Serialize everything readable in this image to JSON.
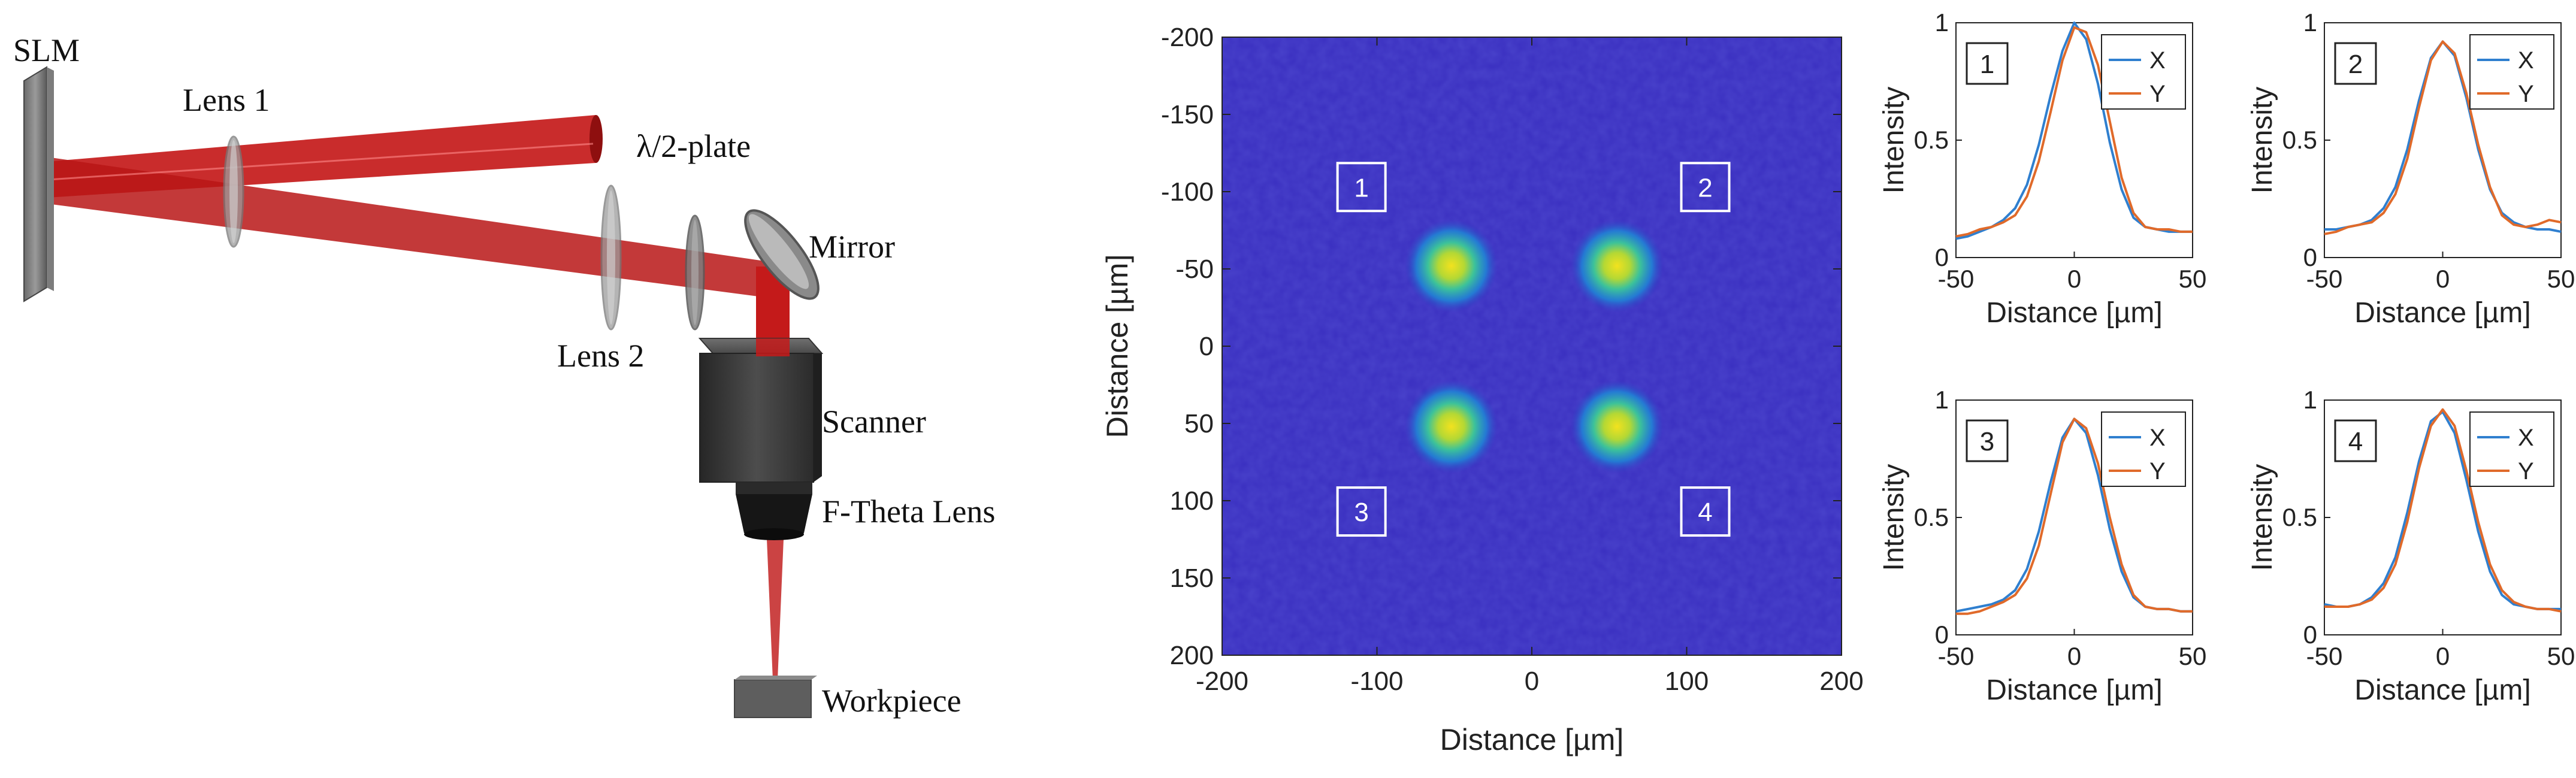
{
  "setup": {
    "labels": {
      "slm": "SLM",
      "lens1": "Lens 1",
      "halfwave": "λ/2-plate",
      "mirror": "Mirror",
      "lens2": "Lens 2",
      "scanner": "Scanner",
      "ftheta": "F-Theta Lens",
      "workpiece": "Workpiece"
    },
    "colors": {
      "beam": "#c41a1a",
      "device": "#3c3c3c",
      "optic": "#a9a9a9"
    }
  },
  "chart_data": [
    {
      "type": "heatmap",
      "xlabel": "Distance [µm]",
      "ylabel": "Distance [µm]",
      "xlim": [
        -200,
        200
      ],
      "ylim": [
        -200,
        200
      ],
      "y_inverted": true,
      "xticks": [
        "-200",
        "-100",
        "0",
        "100",
        "200"
      ],
      "yticks": [
        "-200",
        "-150",
        "-100",
        "-50",
        "0",
        "50",
        "100",
        "150",
        "200"
      ],
      "spots": [
        {
          "x": -52,
          "y": -52
        },
        {
          "x": 55,
          "y": -52
        },
        {
          "x": -52,
          "y": 52
        },
        {
          "x": 55,
          "y": 52
        }
      ],
      "region_boxes": [
        {
          "label": "1",
          "x": -110,
          "y": -103
        },
        {
          "label": "2",
          "x": 112,
          "y": -103
        },
        {
          "label": "3",
          "x": -110,
          "y": 107
        },
        {
          "label": "4",
          "x": 112,
          "y": 107
        }
      ],
      "colormap": [
        "#3a2fc0",
        "#1f8bd8",
        "#20c0a8",
        "#a8d840",
        "#f0e020"
      ]
    },
    {
      "type": "line",
      "panel": "1",
      "xlabel": "Distance [µm]",
      "ylabel": "Intensity",
      "xlim": [
        -50,
        50
      ],
      "ylim": [
        0,
        1
      ],
      "xticks": [
        "-50",
        "0",
        "50"
      ],
      "yticks": [
        "0",
        "0.5",
        "1"
      ],
      "x": [
        -50,
        -45,
        -40,
        -35,
        -30,
        -25,
        -20,
        -15,
        -10,
        -5,
        0,
        5,
        10,
        15,
        20,
        25,
        30,
        35,
        40,
        45,
        50
      ],
      "series": [
        {
          "name": "X",
          "color": "#2f7fcf",
          "values": [
            0.08,
            0.09,
            0.11,
            0.13,
            0.16,
            0.21,
            0.31,
            0.48,
            0.69,
            0.88,
            1.0,
            0.93,
            0.74,
            0.49,
            0.29,
            0.17,
            0.13,
            0.12,
            0.11,
            0.11,
            0.11
          ]
        },
        {
          "name": "Y",
          "color": "#e06a2a",
          "values": [
            0.09,
            0.1,
            0.12,
            0.13,
            0.15,
            0.18,
            0.26,
            0.41,
            0.62,
            0.84,
            0.98,
            0.96,
            0.82,
            0.58,
            0.34,
            0.19,
            0.13,
            0.12,
            0.12,
            0.11,
            0.11
          ]
        }
      ]
    },
    {
      "type": "line",
      "panel": "2",
      "xlabel": "Distance [µm]",
      "ylabel": "Intensity",
      "xlim": [
        -50,
        50
      ],
      "ylim": [
        0,
        1
      ],
      "xticks": [
        "-50",
        "0",
        "50"
      ],
      "yticks": [
        "0",
        "0.5",
        "1"
      ],
      "x": [
        -50,
        -45,
        -40,
        -35,
        -30,
        -25,
        -20,
        -15,
        -10,
        -5,
        0,
        5,
        10,
        15,
        20,
        25,
        30,
        35,
        40,
        45,
        50
      ],
      "series": [
        {
          "name": "X",
          "color": "#2f7fcf",
          "values": [
            0.12,
            0.12,
            0.13,
            0.14,
            0.16,
            0.21,
            0.3,
            0.46,
            0.67,
            0.85,
            0.92,
            0.86,
            0.68,
            0.46,
            0.29,
            0.19,
            0.15,
            0.13,
            0.12,
            0.12,
            0.11
          ]
        },
        {
          "name": "Y",
          "color": "#e06a2a",
          "values": [
            0.1,
            0.11,
            0.13,
            0.14,
            0.15,
            0.19,
            0.27,
            0.42,
            0.64,
            0.84,
            0.92,
            0.87,
            0.7,
            0.48,
            0.3,
            0.18,
            0.14,
            0.13,
            0.14,
            0.16,
            0.15
          ]
        }
      ]
    },
    {
      "type": "line",
      "panel": "3",
      "xlabel": "Distance [µm]",
      "ylabel": "Intensity",
      "xlim": [
        -50,
        50
      ],
      "ylim": [
        0,
        1
      ],
      "xticks": [
        "-50",
        "0",
        "50"
      ],
      "yticks": [
        "0",
        "0.5",
        "1"
      ],
      "x": [
        -50,
        -45,
        -40,
        -35,
        -30,
        -25,
        -20,
        -15,
        -10,
        -5,
        0,
        5,
        10,
        15,
        20,
        25,
        30,
        35,
        40,
        45,
        50
      ],
      "series": [
        {
          "name": "X",
          "color": "#2f7fcf",
          "values": [
            0.1,
            0.11,
            0.12,
            0.13,
            0.15,
            0.19,
            0.28,
            0.44,
            0.65,
            0.84,
            0.92,
            0.86,
            0.68,
            0.45,
            0.27,
            0.16,
            0.12,
            0.11,
            0.11,
            0.1,
            0.1
          ]
        },
        {
          "name": "Y",
          "color": "#e06a2a",
          "values": [
            0.09,
            0.09,
            0.1,
            0.12,
            0.14,
            0.17,
            0.24,
            0.38,
            0.6,
            0.82,
            0.92,
            0.88,
            0.73,
            0.5,
            0.3,
            0.17,
            0.12,
            0.11,
            0.11,
            0.1,
            0.1
          ]
        }
      ]
    },
    {
      "type": "line",
      "panel": "4",
      "xlabel": "Distance [µm]",
      "ylabel": "Intensity",
      "xlim": [
        -50,
        50
      ],
      "ylim": [
        0,
        1
      ],
      "xticks": [
        "-50",
        "0",
        "50"
      ],
      "yticks": [
        "0",
        "0.5",
        "1"
      ],
      "x": [
        -50,
        -45,
        -40,
        -35,
        -30,
        -25,
        -20,
        -15,
        -10,
        -5,
        0,
        5,
        10,
        15,
        20,
        25,
        30,
        35,
        40,
        45,
        50
      ],
      "series": [
        {
          "name": "X",
          "color": "#2f7fcf",
          "values": [
            0.13,
            0.12,
            0.12,
            0.13,
            0.16,
            0.22,
            0.33,
            0.52,
            0.74,
            0.91,
            0.95,
            0.86,
            0.66,
            0.44,
            0.27,
            0.17,
            0.13,
            0.12,
            0.11,
            0.11,
            0.11
          ]
        },
        {
          "name": "Y",
          "color": "#e06a2a",
          "values": [
            0.12,
            0.12,
            0.12,
            0.13,
            0.15,
            0.2,
            0.3,
            0.48,
            0.71,
            0.89,
            0.96,
            0.89,
            0.7,
            0.48,
            0.3,
            0.19,
            0.14,
            0.12,
            0.11,
            0.11,
            0.1
          ]
        }
      ]
    }
  ]
}
